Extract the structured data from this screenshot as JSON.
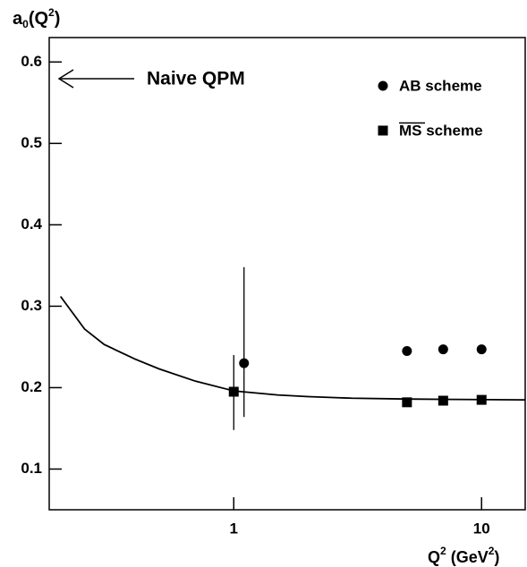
{
  "chart_data": {
    "type": "scatter",
    "ylabel": [
      "a",
      "0",
      "(Q",
      "2",
      ")"
    ],
    "xlabel": [
      "Q",
      "2",
      " (GeV",
      "2",
      ")"
    ],
    "annotation": "Naive QPM",
    "log_x": true,
    "xlim": [
      0.18,
      15
    ],
    "xticks": [
      1,
      10
    ],
    "ylim": [
      0.05,
      0.63
    ],
    "yticks": [
      0.1,
      0.2,
      0.3,
      0.4,
      0.5,
      0.6
    ],
    "legend": "top-right",
    "series": [
      {
        "name": "AB scheme",
        "marker": "circle",
        "color": "#000000",
        "x": [
          1.1,
          5,
          7,
          10
        ],
        "values": [
          0.23,
          0.245,
          0.247,
          0.247
        ],
        "error_low": [
          0.066,
          null,
          null,
          null
        ],
        "error_high": [
          0.118,
          null,
          null,
          null
        ]
      },
      {
        "name": "MS scheme",
        "marker": "square",
        "color": "#000000",
        "x": [
          1,
          5,
          7,
          10
        ],
        "values": [
          0.195,
          0.182,
          0.184,
          0.185
        ],
        "error_low": [
          0.047,
          null,
          null,
          null
        ],
        "error_high": [
          0.045,
          null,
          null,
          null
        ]
      }
    ],
    "curve": {
      "color": "#000000",
      "x": [
        0.2,
        0.25,
        0.3,
        0.4,
        0.5,
        0.7,
        1,
        1.5,
        2,
        3,
        5,
        8,
        15
      ],
      "values": [
        0.312,
        0.272,
        0.253,
        0.235,
        0.223,
        0.208,
        0.196,
        0.191,
        0.189,
        0.187,
        0.186,
        0.1855,
        0.185
      ]
    }
  }
}
